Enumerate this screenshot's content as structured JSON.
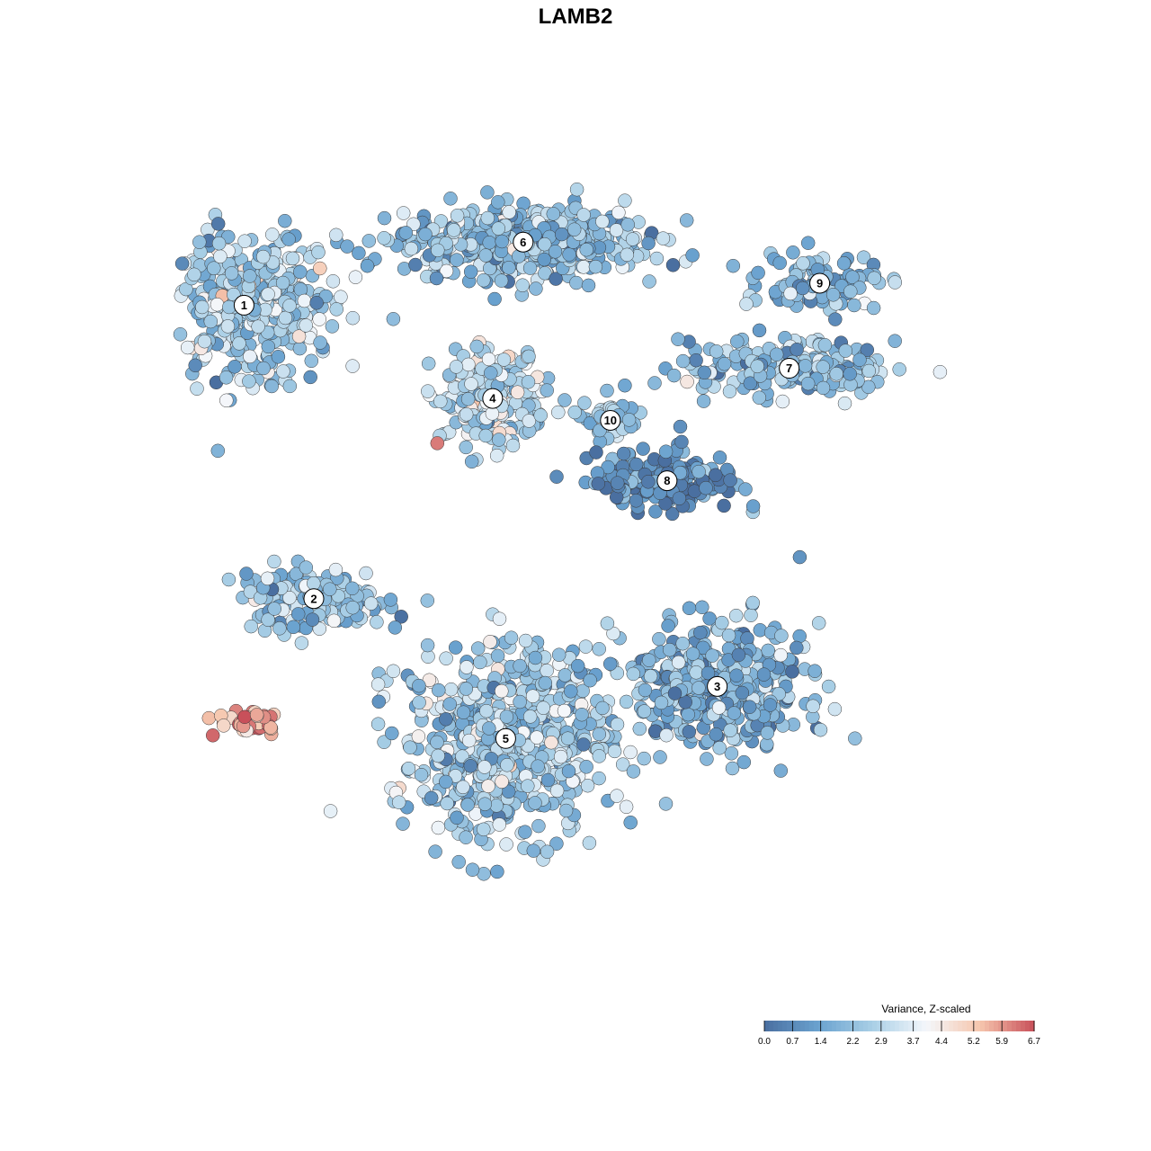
{
  "chart_data": {
    "type": "scatter",
    "title": "LAMB2",
    "xlabel": "",
    "ylabel": "",
    "grid": false,
    "legend_position": "bottom-right",
    "legend": {
      "title": "Variance, Z-scaled",
      "ticks": [
        "0.0",
        "0.7",
        "1.4",
        "2.2",
        "2.9",
        "3.7",
        "4.4",
        "5.2",
        "5.9",
        "6.7"
      ],
      "range": [
        0.0,
        6.7
      ]
    },
    "color_scale": [
      "#4a6fa0",
      "#6aa2cf",
      "#a9cfe6",
      "#f4f7fb",
      "#f6c6ad",
      "#c8505a"
    ],
    "clusters": [
      {
        "label": "1",
        "center": [
          -7.6,
          4.6
        ],
        "spread": [
          1.9,
          1.2
        ],
        "n": 420,
        "mean_value": 2.6
      },
      {
        "label": "6",
        "center": [
          -1.2,
          5.75
        ],
        "spread": [
          2.6,
          0.6
        ],
        "n": 460,
        "mean_value": 2.0
      },
      {
        "label": "9",
        "center": [
          5.6,
          5.0
        ],
        "spread": [
          1.2,
          0.45
        ],
        "n": 110,
        "mean_value": 1.8
      },
      {
        "label": "7",
        "center": [
          4.9,
          3.45
        ],
        "spread": [
          2.2,
          0.45
        ],
        "n": 200,
        "mean_value": 2.1
      },
      {
        "label": "4",
        "center": [
          -1.9,
          2.9
        ],
        "spread": [
          1.1,
          0.75
        ],
        "n": 240,
        "mean_value": 3.0
      },
      {
        "label": "10",
        "center": [
          0.8,
          2.5
        ],
        "spread": [
          0.5,
          0.35
        ],
        "n": 55,
        "mean_value": 2.4
      },
      {
        "label": "8",
        "center": [
          2.1,
          1.4
        ],
        "spread": [
          1.5,
          0.5
        ],
        "n": 170,
        "mean_value": 0.8
      },
      {
        "label": "2",
        "center": [
          -6.0,
          -0.75
        ],
        "spread": [
          1.5,
          0.5
        ],
        "n": 150,
        "mean_value": 2.2
      },
      {
        "label": "3",
        "center": [
          3.25,
          -2.35
        ],
        "spread": [
          1.8,
          1.0
        ],
        "n": 420,
        "mean_value": 1.8
      },
      {
        "label": "5",
        "center": [
          -1.6,
          -3.3
        ],
        "spread": [
          2.2,
          1.6
        ],
        "n": 640,
        "mean_value": 2.5
      },
      {
        "label": "",
        "center": [
          -7.4,
          -3.0
        ],
        "spread": [
          0.7,
          0.25
        ],
        "n": 40,
        "mean_value": 5.9
      }
    ]
  }
}
